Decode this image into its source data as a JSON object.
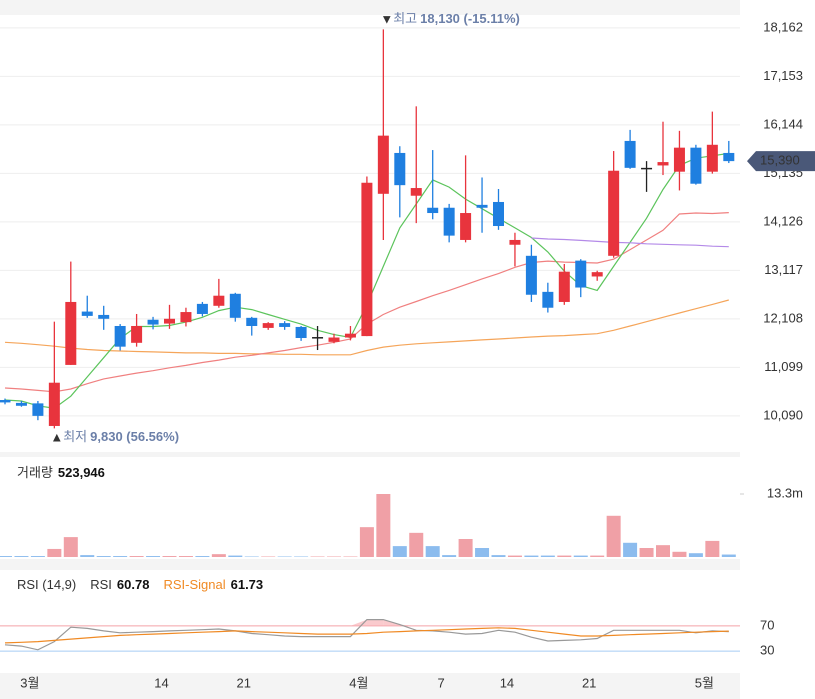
{
  "chart_data": [
    {
      "type": "candlestick",
      "categories": [
        null,
        null,
        "3월",
        null,
        null,
        null,
        null,
        null,
        null,
        null,
        "14",
        null,
        null,
        null,
        null,
        "21",
        null,
        null,
        null,
        null,
        null,
        null,
        "4월",
        null,
        null,
        null,
        null,
        "7",
        null,
        null,
        null,
        "14",
        null,
        null,
        null,
        null,
        "21",
        null,
        null,
        null,
        null,
        null,
        null,
        "5월",
        null
      ],
      "open": [
        10420,
        10360,
        10350,
        9880,
        11150,
        12260,
        12190,
        11960,
        11610,
        12090,
        12010,
        12040,
        12420,
        12380,
        12630,
        12130,
        11920,
        12020,
        11940,
        11730,
        11630,
        11720,
        11750,
        14710,
        15560,
        14670,
        14420,
        14420,
        13750,
        14480,
        14540,
        13650,
        13420,
        12670,
        12460,
        13320,
        12990,
        13420,
        15810,
        15250,
        15300,
        15170,
        15670,
        15170,
        15560
      ],
      "high": [
        10450,
        10400,
        10400,
        12050,
        13300,
        12590,
        12380,
        12000,
        12210,
        12150,
        12400,
        12340,
        12460,
        12940,
        12650,
        12150,
        12040,
        12060,
        11960,
        11960,
        11800,
        11960,
        15070,
        18130,
        15700,
        16530,
        15620,
        14500,
        15510,
        15050,
        14810,
        13900,
        13650,
        12860,
        13250,
        13350,
        13110,
        15600,
        16040,
        15390,
        16210,
        16020,
        15730,
        16420,
        15810
      ],
      "low": [
        10330,
        10280,
        10000,
        9830,
        11150,
        12130,
        11880,
        11450,
        11530,
        11890,
        11900,
        11950,
        12160,
        12340,
        12050,
        11760,
        11880,
        11880,
        11650,
        11460,
        11600,
        11660,
        11750,
        13750,
        14220,
        14100,
        14180,
        13700,
        13700,
        13900,
        13960,
        13200,
        12460,
        12240,
        12400,
        12560,
        12900,
        13380,
        15230,
        14750,
        15100,
        14780,
        14900,
        15130,
        15350
      ],
      "close": [
        10370,
        10300,
        10090,
        10780,
        12460,
        12170,
        12110,
        11530,
        11960,
        11990,
        12110,
        12250,
        12210,
        12590,
        12130,
        11960,
        12020,
        11940,
        11710,
        11730,
        11720,
        11800,
        14940,
        15920,
        14890,
        14830,
        14310,
        13840,
        14310,
        14420,
        14040,
        13750,
        12610,
        12340,
        13090,
        12760,
        13080,
        15190,
        15250,
        15250,
        15370,
        15670,
        14920,
        15730,
        15390
      ],
      "up_color": "#e8343d",
      "down_color": "#1f7fe0",
      "flat_color": "#222222",
      "series": [
        {
          "color": "#f5a55a",
          "values": [
            11620,
            11600,
            11570,
            11540,
            11500,
            11470,
            11450,
            11440,
            11430,
            11420,
            11410,
            11400,
            11400,
            11390,
            11390,
            11380,
            11380,
            11370,
            11370,
            11360,
            11360,
            11360,
            11450,
            11520,
            11560,
            11590,
            11610,
            11630,
            11650,
            11670,
            11690,
            11710,
            11730,
            11750,
            11760,
            11780,
            11800,
            11870,
            11960,
            12050,
            12140,
            12230,
            12320,
            12410,
            12500
          ]
        },
        {
          "color": "#f08080",
          "values": [
            10670,
            10650,
            10620,
            10590,
            10650,
            10760,
            10860,
            10920,
            10980,
            11030,
            11090,
            11140,
            11200,
            11250,
            11310,
            11350,
            11400,
            11450,
            11510,
            11560,
            11620,
            11690,
            12000,
            12200,
            12350,
            12470,
            12590,
            12700,
            12820,
            12940,
            13050,
            13180,
            13280,
            13310,
            13290,
            13280,
            13270,
            13350,
            13550,
            13750,
            13950,
            14290,
            14310,
            14300,
            14320
          ]
        },
        {
          "color": "#5cc45c",
          "values": [
            10420,
            10400,
            10300,
            10250,
            10500,
            10900,
            11300,
            11700,
            11950,
            11950,
            11970,
            12040,
            12140,
            12280,
            12350,
            12300,
            12200,
            12100,
            12000,
            11870,
            11780,
            11720,
            12400,
            13200,
            14000,
            14500,
            15000,
            14850,
            14600,
            14400,
            14200,
            14000,
            13800,
            13500,
            13100,
            12800,
            12700,
            13200,
            13700,
            14200,
            14800,
            15300,
            15450,
            15500,
            15550
          ]
        },
        {
          "color": "#b48ae8",
          "values": [
            null,
            null,
            null,
            null,
            null,
            null,
            null,
            null,
            null,
            null,
            null,
            null,
            null,
            null,
            null,
            null,
            null,
            null,
            null,
            null,
            null,
            null,
            null,
            null,
            null,
            null,
            null,
            null,
            null,
            null,
            null,
            null,
            13790,
            13770,
            13760,
            13740,
            13720,
            13700,
            13690,
            13670,
            13660,
            13650,
            13640,
            13620,
            13610
          ]
        }
      ],
      "ylim": [
        9380,
        18430
      ],
      "yticks": [
        {
          "value": 18162,
          "label": "18,162"
        },
        {
          "value": 17153,
          "label": "17,153"
        },
        {
          "value": 16144,
          "label": "16,144"
        },
        {
          "value": 15135,
          "label": "15,135"
        },
        {
          "value": 14126,
          "label": "14,126"
        },
        {
          "value": 13117,
          "label": "13,117"
        },
        {
          "value": 12108,
          "label": "12,108"
        },
        {
          "value": 11099,
          "label": "11,099"
        },
        {
          "value": 10090,
          "label": "10,090"
        }
      ],
      "grid": true,
      "high_label": "최고",
      "high_text": "18,130 (-15.11%)",
      "low_label": "최저",
      "low_text": "9,830 (56.56%)",
      "last_price": 15390,
      "last_price_label": "15,390"
    },
    {
      "type": "bar",
      "title": "거래량",
      "latest_label": "523,946",
      "values": [
        0.2,
        0.2,
        0.2,
        1.7,
        4.2,
        0.4,
        0.2,
        0.2,
        0.2,
        0.2,
        0.2,
        0.2,
        0.2,
        0.6,
        0.3,
        0.1,
        0.1,
        0.1,
        0.1,
        0.1,
        0.1,
        0.1,
        6.3,
        13.3,
        2.3,
        5.1,
        2.3,
        0.4,
        3.8,
        1.9,
        0.4,
        0.3,
        0.3,
        0.3,
        0.3,
        0.3,
        0.3,
        8.7,
        3.0,
        1.9,
        2.5,
        1.1,
        0.8,
        3.4,
        0.52
      ],
      "ylim": [
        0,
        13.3
      ],
      "yticks": [
        {
          "value": 13.3,
          "label": "13.3m"
        }
      ]
    },
    {
      "type": "line",
      "title": "RSI (14,9)",
      "series": [
        {
          "name": "RSI",
          "color": "#999999",
          "value_labels": "60.78",
          "values": [
            40,
            38,
            32,
            45,
            68,
            66,
            62,
            59,
            60,
            61,
            62,
            63,
            64,
            65,
            62,
            58,
            56,
            54,
            53,
            53,
            53,
            53,
            80,
            80,
            72,
            63,
            62,
            60,
            57,
            58,
            63,
            60,
            52,
            46,
            47,
            48,
            50,
            63,
            63,
            63,
            63,
            63,
            59,
            62,
            60.78
          ]
        },
        {
          "name": "RSI-Signal",
          "color": "#f08a24",
          "value_labels": "61.73",
          "values": [
            43,
            44,
            45,
            47,
            49,
            51,
            53,
            55,
            56,
            57,
            58,
            59,
            60,
            61,
            62,
            61,
            60,
            59,
            58,
            57,
            57,
            57,
            58,
            60,
            61,
            62,
            63,
            64,
            65,
            66,
            67,
            66,
            63,
            60,
            57,
            54,
            54,
            55,
            56,
            57,
            58,
            59,
            60,
            61,
            61.73
          ]
        }
      ],
      "ylim": [
        0,
        100
      ],
      "yticks": [
        {
          "value": 70,
          "label": "70",
          "color": "#e8343d"
        },
        {
          "value": 30,
          "label": "30",
          "color": "#3a8fe8"
        }
      ]
    }
  ]
}
